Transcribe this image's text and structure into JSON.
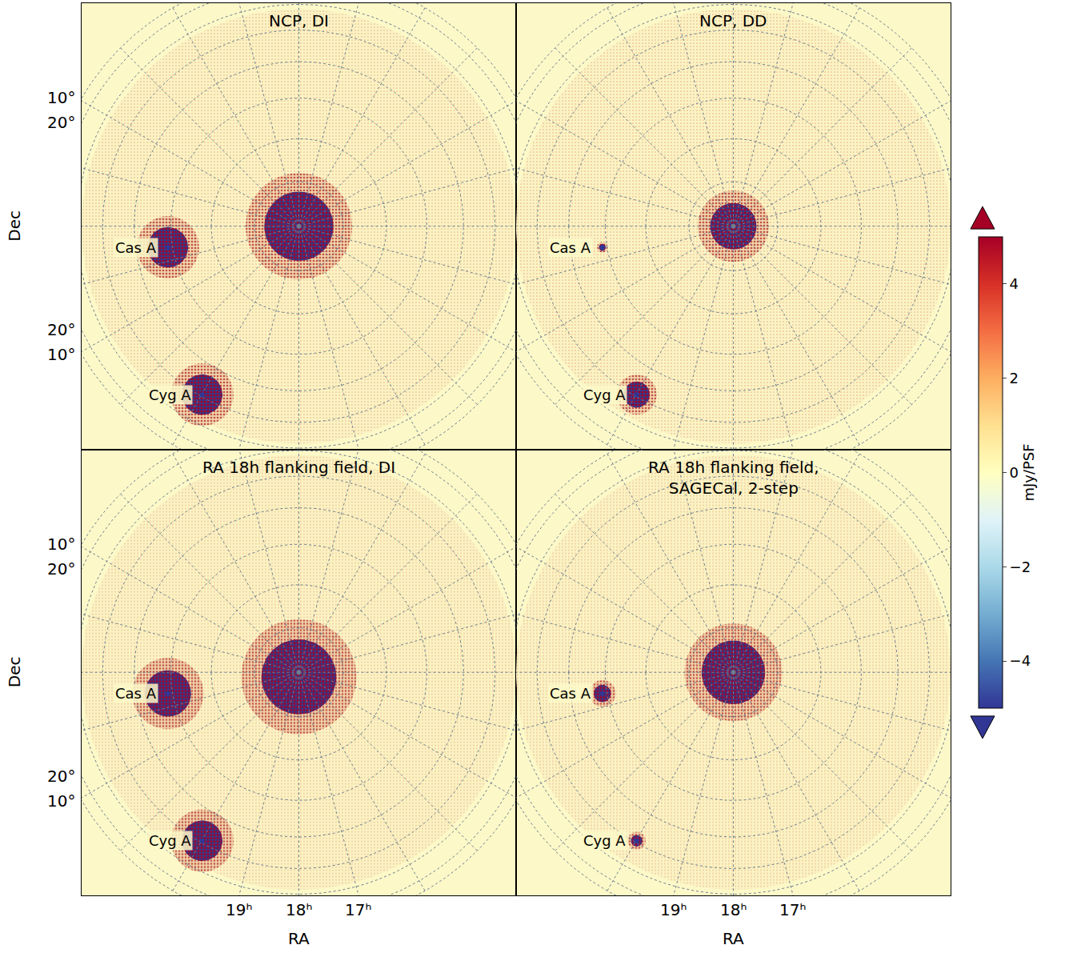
{
  "chart_data": {
    "type": "sky_map",
    "grid": true,
    "view_ra": 18,
    "disc_dec_min": 32,
    "ra_grid": [
      0,
      1,
      2,
      3,
      4,
      5,
      6,
      7,
      8,
      9,
      10,
      11,
      12,
      13,
      14,
      15,
      16,
      17,
      18,
      19,
      20,
      21,
      22,
      23
    ],
    "dec_grid": [
      80,
      70,
      60,
      50,
      40,
      30,
      20,
      10
    ],
    "colorbar": {
      "label": "mJy/PSF",
      "range": [
        -5,
        5
      ],
      "ticks": [
        -4,
        -2,
        0,
        2,
        4
      ]
    },
    "panels": [
      {
        "title": "NCP, DI",
        "ylabel": "Dec",
        "yticks": [
          {
            "value": 10,
            "label": "10°"
          },
          {
            "value": 20,
            "label": "20°"
          }
        ],
        "sources": [
          {
            "name": "Cas A",
            "ra": 23.39,
            "dec": 58.81
          },
          {
            "name": "Cyg A",
            "ra": 19.99,
            "dec": 40.73
          }
        ],
        "residuals": [
          {
            "ra": 18,
            "dec": 90,
            "radius": 12
          },
          {
            "ra": 23.39,
            "dec": 58.81,
            "radius": 7
          },
          {
            "ra": 19.99,
            "dec": 40.73,
            "radius": 7
          }
        ]
      },
      {
        "title": "NCP, DD",
        "sources": [
          {
            "name": "Cas A",
            "ra": 23.39,
            "dec": 58.81
          },
          {
            "name": "Cyg A",
            "ra": 19.99,
            "dec": 40.73
          }
        ],
        "residuals": [
          {
            "ra": 18,
            "dec": 90,
            "radius": 8
          },
          {
            "ra": 23.39,
            "dec": 58.81,
            "radius": 1.2
          },
          {
            "ra": 19.99,
            "dec": 40.73,
            "radius": 4.5
          }
        ]
      },
      {
        "title": "RA 18h flanking field, DI",
        "xlabel": "RA",
        "ylabel": "Dec",
        "xticks": [
          {
            "value": 19,
            "label": "19ʰ"
          },
          {
            "value": 18,
            "label": "18ʰ"
          },
          {
            "value": 17,
            "label": "17ʰ"
          }
        ],
        "yticks": [
          {
            "value": 10,
            "label": "10°"
          },
          {
            "value": 20,
            "label": "20°"
          }
        ],
        "sources": [
          {
            "name": "Cas A",
            "ra": 23.39,
            "dec": 58.81
          },
          {
            "name": "Cyg A",
            "ra": 19.99,
            "dec": 40.73
          }
        ],
        "residuals": [
          {
            "ra": 18,
            "dec": 89,
            "radius": 13
          },
          {
            "ra": 23.39,
            "dec": 58.81,
            "radius": 8
          },
          {
            "ra": 19.99,
            "dec": 40.73,
            "radius": 7
          }
        ]
      },
      {
        "title": "RA 18h flanking field, SAGECal, 2-step",
        "xlabel": "RA",
        "xticks": [
          {
            "value": 19,
            "label": "19ʰ"
          },
          {
            "value": 18,
            "label": "18ʰ"
          },
          {
            "value": 17,
            "label": "17ʰ"
          }
        ],
        "sources": [
          {
            "name": "Cas A",
            "ra": 23.39,
            "dec": 58.81
          },
          {
            "name": "Cyg A",
            "ra": 19.99,
            "dec": 40.73
          }
        ],
        "residuals": [
          {
            "ra": 18,
            "dec": 90,
            "radius": 11
          },
          {
            "ra": 23.39,
            "dec": 58.81,
            "radius": 3
          },
          {
            "ra": 19.99,
            "dec": 40.73,
            "radius": 2
          }
        ]
      }
    ]
  }
}
